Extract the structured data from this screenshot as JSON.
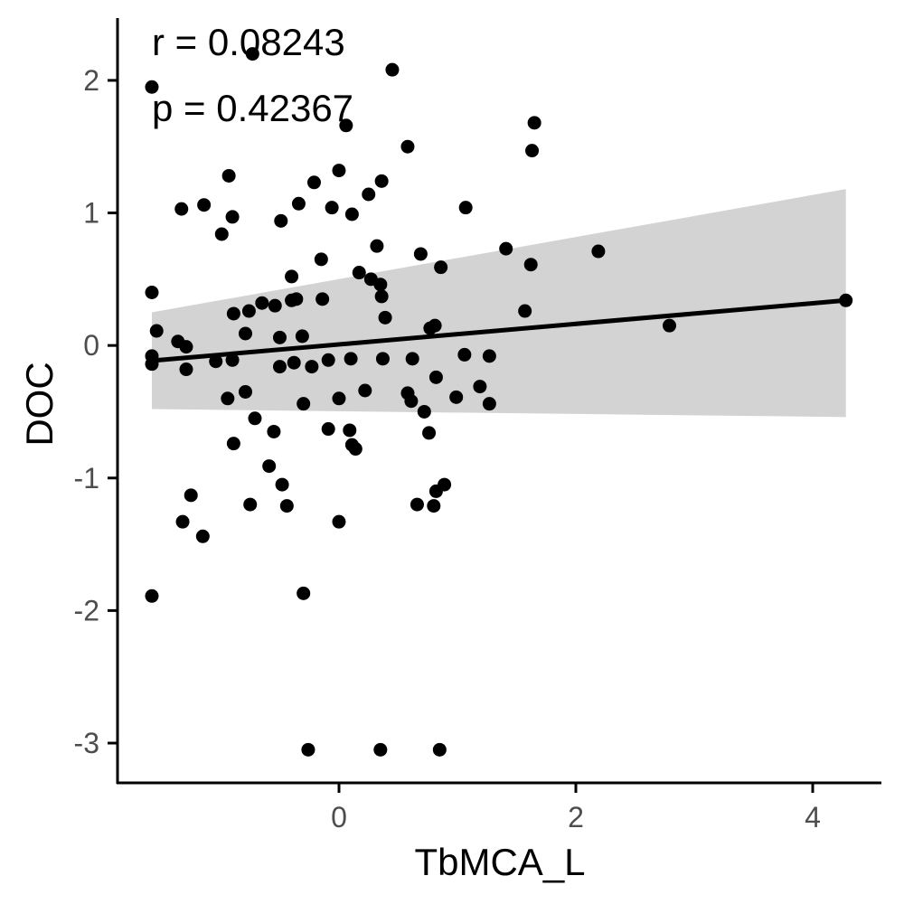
{
  "chart_data": {
    "type": "scatter",
    "xlabel": "TbMCA_L",
    "ylabel": "DOC",
    "xlim": [
      -1.87,
      4.58
    ],
    "ylim": [
      -3.3,
      2.47
    ],
    "x_ticks": [
      0,
      2,
      4
    ],
    "x_tick_labels": [
      "0",
      "2",
      "4"
    ],
    "y_ticks": [
      2,
      1,
      0,
      -1,
      -2,
      -3
    ],
    "y_tick_labels": [
      "2",
      "1",
      "0",
      "-1",
      "-2",
      "-3"
    ],
    "grid": false,
    "annotations": [
      "r = 0.08243",
      "p = 0.42367"
    ],
    "fit": {
      "line": [
        [
          -1.58,
          -0.115
        ],
        [
          4.28,
          0.34
        ]
      ],
      "band_x": [
        -1.58,
        4.28
      ],
      "band_upper": [
        0.25,
        1.18
      ],
      "band_lower": [
        -0.48,
        -0.54
      ]
    },
    "points": [
      {
        "x": -1.58,
        "y": 1.95
      },
      {
        "x": -0.73,
        "y": 2.2
      },
      {
        "x": 0.45,
        "y": 2.08
      },
      {
        "x": 0.06,
        "y": 1.66
      },
      {
        "x": 0.58,
        "y": 1.5
      },
      {
        "x": 1.65,
        "y": 1.68
      },
      {
        "x": 1.63,
        "y": 1.47
      },
      {
        "x": 0.0,
        "y": 1.32
      },
      {
        "x": -0.93,
        "y": 1.28
      },
      {
        "x": -0.21,
        "y": 1.23
      },
      {
        "x": 0.36,
        "y": 1.24
      },
      {
        "x": 0.25,
        "y": 1.14
      },
      {
        "x": -0.34,
        "y": 1.07
      },
      {
        "x": 1.07,
        "y": 1.04
      },
      {
        "x": -1.33,
        "y": 1.03
      },
      {
        "x": -1.14,
        "y": 1.06
      },
      {
        "x": -0.06,
        "y": 1.04
      },
      {
        "x": 0.11,
        "y": 0.99
      },
      {
        "x": -0.9,
        "y": 0.97
      },
      {
        "x": -0.49,
        "y": 0.94
      },
      {
        "x": -0.99,
        "y": 0.84
      },
      {
        "x": 0.32,
        "y": 0.75
      },
      {
        "x": 1.41,
        "y": 0.73
      },
      {
        "x": 2.19,
        "y": 0.71
      },
      {
        "x": 0.69,
        "y": 0.69
      },
      {
        "x": -0.15,
        "y": 0.65
      },
      {
        "x": 1.62,
        "y": 0.61
      },
      {
        "x": 0.86,
        "y": 0.59
      },
      {
        "x": 0.17,
        "y": 0.55
      },
      {
        "x": -0.4,
        "y": 0.52
      },
      {
        "x": 0.27,
        "y": 0.5
      },
      {
        "x": 0.35,
        "y": 0.46
      },
      {
        "x": -1.58,
        "y": 0.4
      },
      {
        "x": 0.36,
        "y": 0.37
      },
      {
        "x": -0.14,
        "y": 0.35
      },
      {
        "x": -0.36,
        "y": 0.35
      },
      {
        "x": -0.4,
        "y": 0.34
      },
      {
        "x": 4.28,
        "y": 0.34
      },
      {
        "x": -0.65,
        "y": 0.32
      },
      {
        "x": -0.54,
        "y": 0.3
      },
      {
        "x": -0.76,
        "y": 0.26
      },
      {
        "x": 1.57,
        "y": 0.26
      },
      {
        "x": -0.89,
        "y": 0.24
      },
      {
        "x": 0.39,
        "y": 0.21
      },
      {
        "x": 2.79,
        "y": 0.15
      },
      {
        "x": 0.81,
        "y": 0.15
      },
      {
        "x": 0.77,
        "y": 0.13
      },
      {
        "x": -1.54,
        "y": 0.11
      },
      {
        "x": -0.79,
        "y": 0.09
      },
      {
        "x": -0.31,
        "y": 0.07
      },
      {
        "x": -0.5,
        "y": 0.06
      },
      {
        "x": -1.36,
        "y": 0.03
      },
      {
        "x": -1.29,
        "y": -0.01
      },
      {
        "x": -1.58,
        "y": -0.08
      },
      {
        "x": 1.06,
        "y": -0.07
      },
      {
        "x": 1.27,
        "y": -0.08
      },
      {
        "x": 0.1,
        "y": -0.1
      },
      {
        "x": 0.37,
        "y": -0.1
      },
      {
        "x": 0.62,
        "y": -0.1
      },
      {
        "x": -0.9,
        "y": -0.11
      },
      {
        "x": -0.09,
        "y": -0.11
      },
      {
        "x": -1.04,
        "y": -0.12
      },
      {
        "x": -1.58,
        "y": -0.14
      },
      {
        "x": -0.38,
        "y": -0.13
      },
      {
        "x": -0.5,
        "y": -0.16
      },
      {
        "x": -0.23,
        "y": -0.16
      },
      {
        "x": -1.29,
        "y": -0.18
      },
      {
        "x": 0.82,
        "y": -0.24
      },
      {
        "x": 1.19,
        "y": -0.31
      },
      {
        "x": 0.22,
        "y": -0.34
      },
      {
        "x": -0.79,
        "y": -0.35
      },
      {
        "x": 0.58,
        "y": -0.36
      },
      {
        "x": -0.94,
        "y": -0.4
      },
      {
        "x": 0.0,
        "y": -0.4
      },
      {
        "x": 0.99,
        "y": -0.39
      },
      {
        "x": 0.61,
        "y": -0.42
      },
      {
        "x": -0.3,
        "y": -0.44
      },
      {
        "x": 1.27,
        "y": -0.44
      },
      {
        "x": 0.72,
        "y": -0.5
      },
      {
        "x": -0.71,
        "y": -0.55
      },
      {
        "x": -0.09,
        "y": -0.63
      },
      {
        "x": 0.09,
        "y": -0.64
      },
      {
        "x": -0.55,
        "y": -0.65
      },
      {
        "x": 0.76,
        "y": -0.66
      },
      {
        "x": -0.89,
        "y": -0.74
      },
      {
        "x": 0.11,
        "y": -0.75
      },
      {
        "x": 0.14,
        "y": -0.78
      },
      {
        "x": -0.59,
        "y": -0.91
      },
      {
        "x": -0.48,
        "y": -1.05
      },
      {
        "x": 0.89,
        "y": -1.05
      },
      {
        "x": 0.82,
        "y": -1.1
      },
      {
        "x": -1.25,
        "y": -1.13
      },
      {
        "x": -0.75,
        "y": -1.2
      },
      {
        "x": -0.44,
        "y": -1.21
      },
      {
        "x": 0.66,
        "y": -1.2
      },
      {
        "x": 0.8,
        "y": -1.21
      },
      {
        "x": -1.32,
        "y": -1.33
      },
      {
        "x": 0.0,
        "y": -1.33
      },
      {
        "x": -1.15,
        "y": -1.44
      },
      {
        "x": -1.58,
        "y": -1.89
      },
      {
        "x": -0.3,
        "y": -1.87
      },
      {
        "x": -0.26,
        "y": -3.05
      },
      {
        "x": 0.35,
        "y": -3.05
      },
      {
        "x": 0.85,
        "y": -3.05
      }
    ]
  },
  "colors": {
    "point": "#000000",
    "line": "#000000",
    "band": "#d3d3d3",
    "axis": "#000000",
    "tick_label": "#4d4d4d"
  }
}
